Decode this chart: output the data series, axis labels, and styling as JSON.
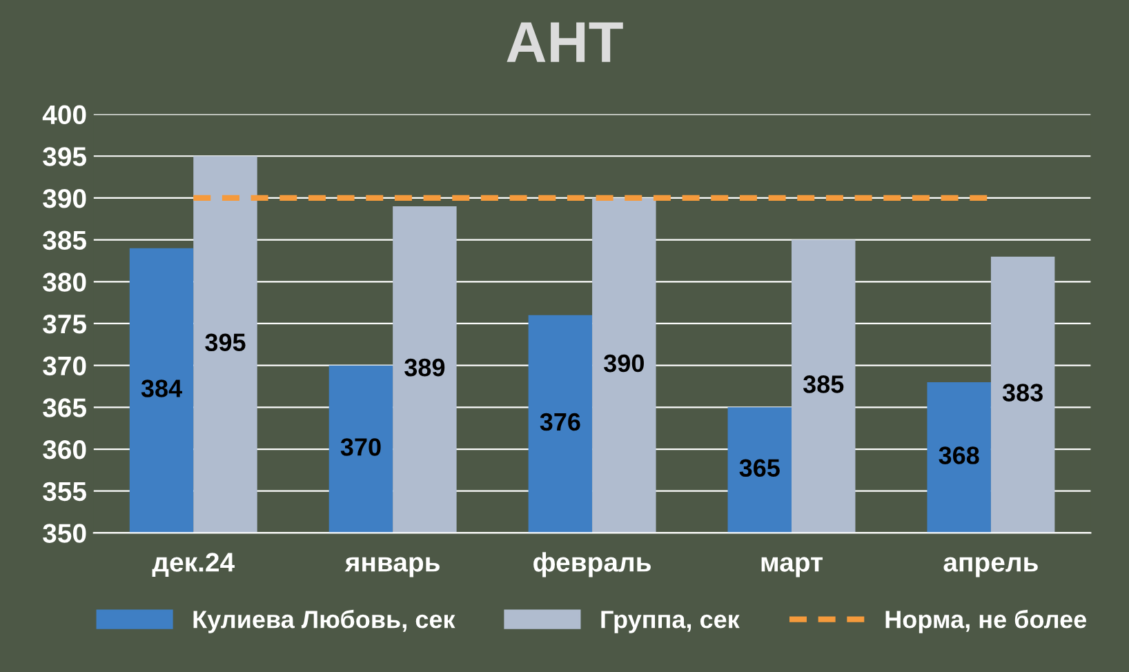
{
  "chart_data": {
    "type": "bar",
    "title": "АНТ",
    "categories": [
      "дек.24",
      "январь",
      "февраль",
      "март",
      "апрель"
    ],
    "series": [
      {
        "name": "Кулиева Любовь, сек",
        "color": "#3f7fc4",
        "values": [
          384,
          370,
          376,
          365,
          368
        ],
        "value_labels": [
          "384",
          "370",
          "376",
          "365",
          "368"
        ]
      },
      {
        "name": "Группа, сек",
        "color": "#b0bccf",
        "values": [
          395,
          389,
          390,
          385,
          383
        ],
        "value_labels": [
          "395",
          "389",
          "390",
          "385",
          "383"
        ]
      },
      {
        "name": "Норма, не более",
        "type": "line",
        "color": "#f59a3c",
        "line_style": "dashed",
        "values": [
          390,
          390,
          390,
          390,
          390
        ]
      }
    ],
    "ylim": [
      350,
      400
    ],
    "yticks": [
      350,
      355,
      360,
      365,
      370,
      375,
      380,
      385,
      390,
      395,
      400
    ],
    "grid": "y",
    "legend": "bottom"
  }
}
